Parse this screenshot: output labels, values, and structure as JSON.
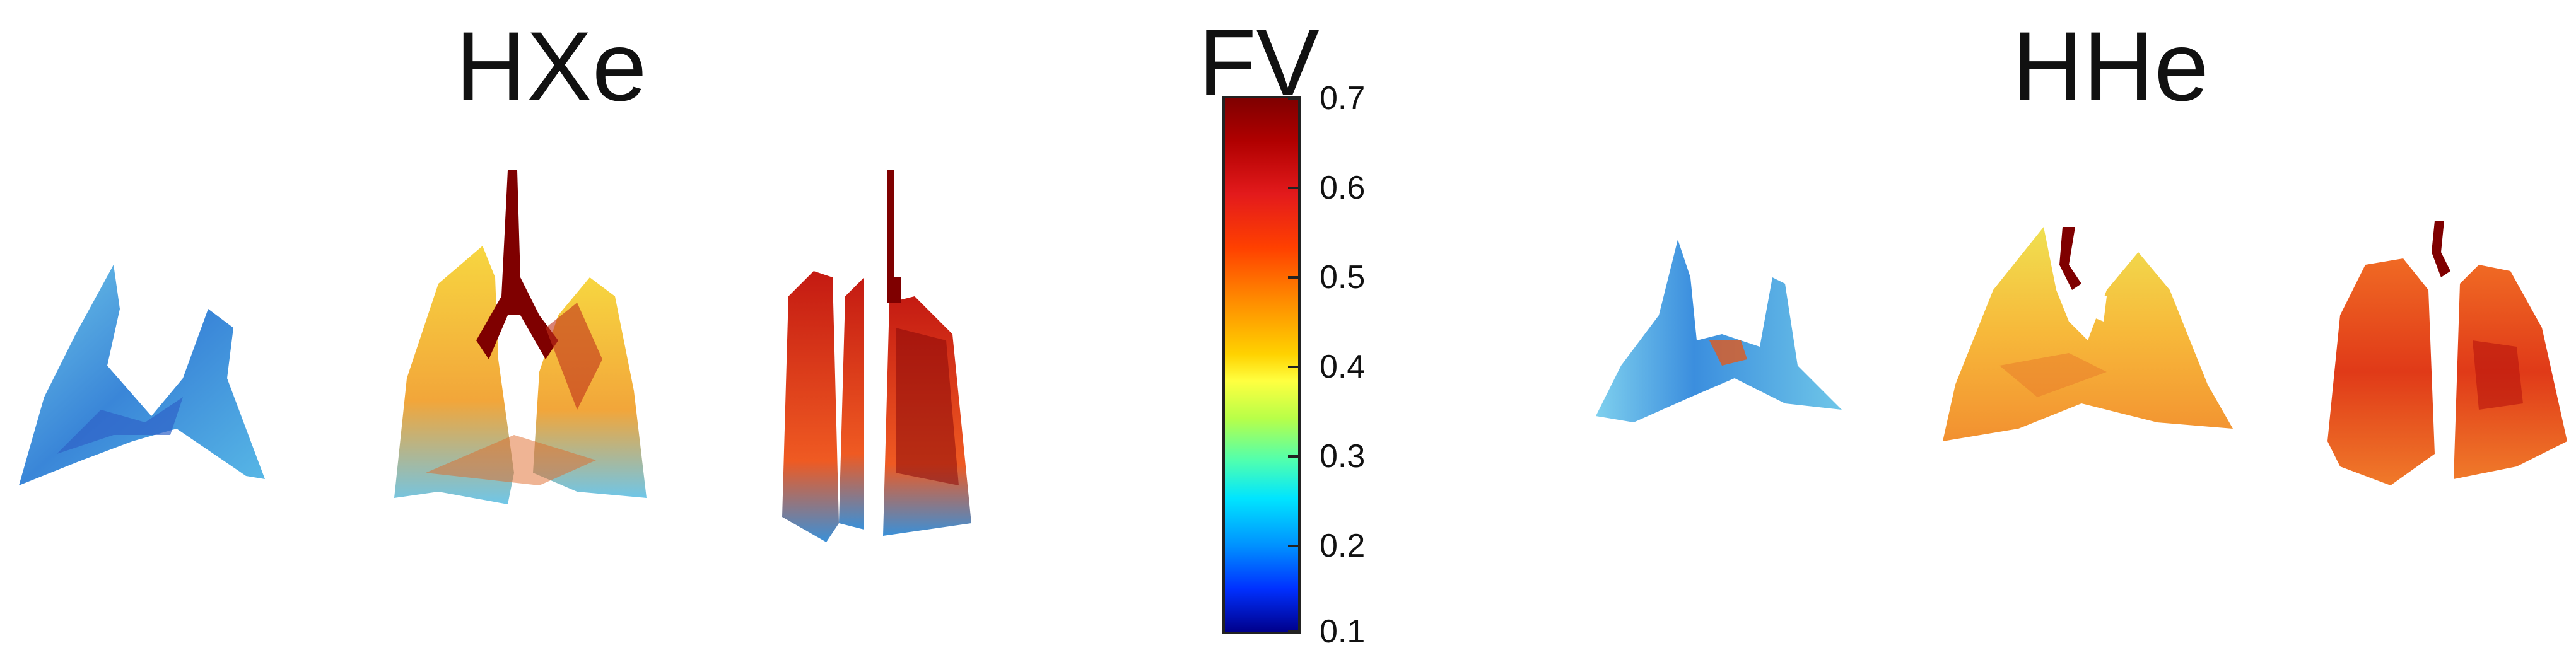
{
  "groups": [
    {
      "title": "HXe"
    },
    {
      "title": "HHe"
    }
  ],
  "colorbar": {
    "label": "FV",
    "min": 0.1,
    "max": 0.7,
    "ticks": [
      "0.7",
      "0.6",
      "0.5",
      "0.4",
      "0.3",
      "0.2",
      "0.1"
    ],
    "colormap": "jet"
  },
  "panels": [
    {
      "group": "HXe",
      "index": 1,
      "dominant_color": "#3fa9e0"
    },
    {
      "group": "HXe",
      "index": 2,
      "dominant_color": "#f2c12e"
    },
    {
      "group": "HXe",
      "index": 3,
      "dominant_color": "#d93a1a"
    },
    {
      "group": "HHe",
      "index": 1,
      "dominant_color": "#4fb3e0"
    },
    {
      "group": "HHe",
      "index": 2,
      "dominant_color": "#f5c030"
    },
    {
      "group": "HHe",
      "index": 3,
      "dominant_color": "#e0441c"
    }
  ]
}
